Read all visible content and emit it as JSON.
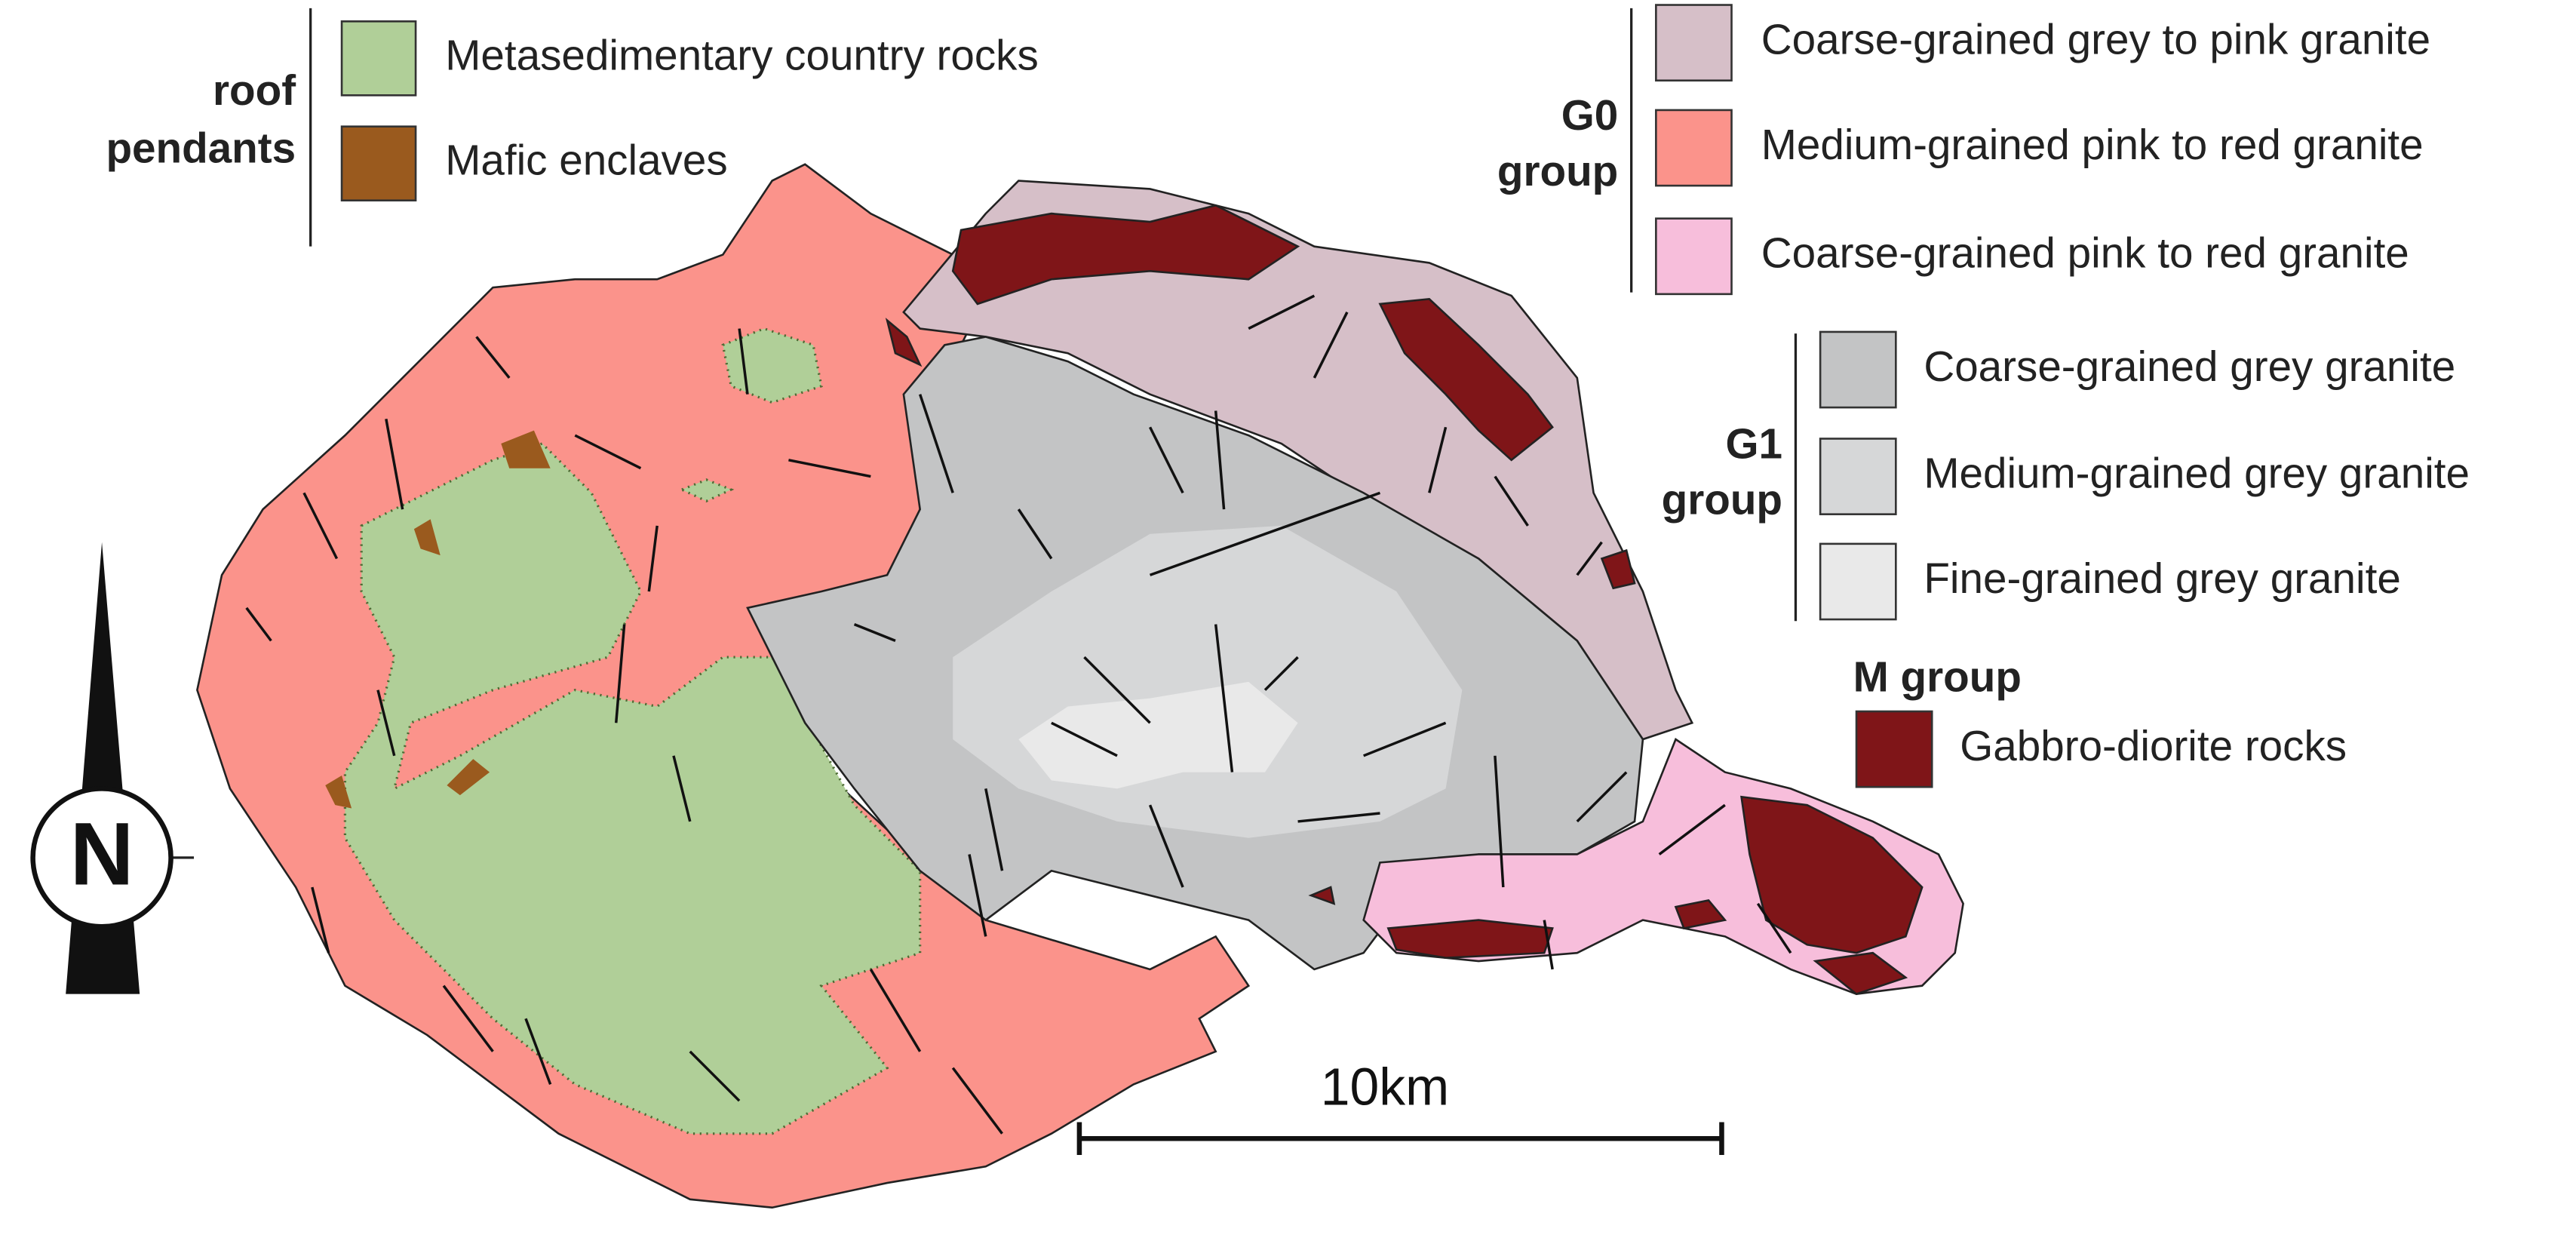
{
  "legend": [
    {
      "title": [
        "roof",
        "pendants"
      ],
      "items": [
        {
          "label": "Metasedimentary country rocks",
          "color": "#b0cf98"
        },
        {
          "label": "Mafic enclaves",
          "color": "#9a5a1e"
        }
      ]
    },
    {
      "title": [
        "G0",
        "group"
      ],
      "items": [
        {
          "label": "Coarse-grained grey to pink granite",
          "color": "#d6bfc8"
        },
        {
          "label": "Medium-grained pink to red granite",
          "color": "#fb938b"
        },
        {
          "label": "Coarse-grained pink to red granite",
          "color": "#f7bedb"
        }
      ]
    },
    {
      "title": [
        "G1",
        "group"
      ],
      "items": [
        {
          "label": "Coarse-grained grey granite",
          "color": "#c3c4c5"
        },
        {
          "label": "Medium-grained grey granite",
          "color": "#d6d7d8"
        },
        {
          "label": "Fine-grained grey granite",
          "color": "#e9e9e9"
        }
      ]
    },
    {
      "title": [
        "M group"
      ],
      "items": [
        {
          "label": "Gabbro-diorite rocks",
          "color": "#7f1518"
        }
      ]
    }
  ],
  "scale_bar": {
    "label": "10km"
  },
  "north_arrow": {
    "label": "N"
  }
}
